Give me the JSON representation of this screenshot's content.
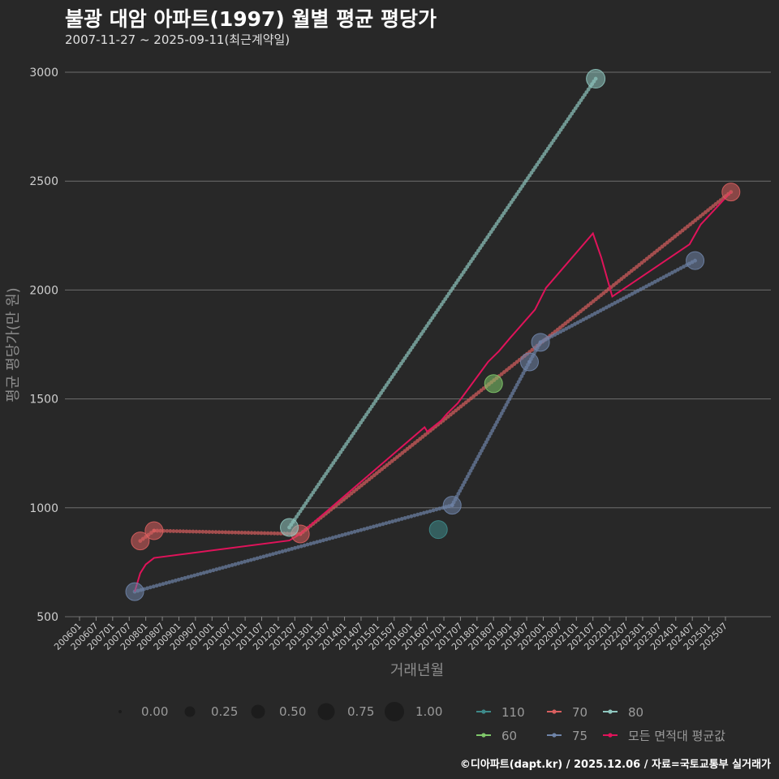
{
  "title": "불광 대암 아파트(1997) 월별 평균 평당가",
  "subtitle": "2007-11-27 ~ 2025-09-11(최근계약일)",
  "footer": "©디아파트(dapt.kr) / 2025.12.06 / 자료=국토교통부 실거래가",
  "chart_data": {
    "type": "line",
    "title": "불광 대암 아파트(1997) 월별 평균 평당가",
    "xlabel": "거래년월",
    "ylabel": "평균 평당가(만 원)",
    "ylim": [
      500,
      3000
    ],
    "yticks": [
      500,
      1000,
      1500,
      2000,
      2500,
      3000
    ],
    "xtick_labels": [
      "200601",
      "200607",
      "200701",
      "200707",
      "200801",
      "200807",
      "200901",
      "200907",
      "201001",
      "201007",
      "201101",
      "201107",
      "201201",
      "201207",
      "201301",
      "201307",
      "201401",
      "201407",
      "201501",
      "201507",
      "201601",
      "201607",
      "201701",
      "201707",
      "201801",
      "201807",
      "201901",
      "201907",
      "202001",
      "202007",
      "202101",
      "202107",
      "202201",
      "202207",
      "202301",
      "202307",
      "202401",
      "202407",
      "202501",
      "202507"
    ],
    "size_legend": [
      "0.00",
      "0.25",
      "0.50",
      "0.75",
      "1.00"
    ],
    "series": [
      {
        "name": "110",
        "color": "#3e8a8a",
        "points": [
          {
            "x": "2016-11",
            "y": 900,
            "size": 0.6
          }
        ]
      },
      {
        "name": "70",
        "color": "#d95f5f",
        "points": [
          {
            "x": "2007-11",
            "y": 848,
            "size": 0.6
          },
          {
            "x": "2008-04",
            "y": 895,
            "size": 0.6
          },
          {
            "x": "2012-09",
            "y": 880,
            "size": 0.6
          },
          {
            "x": "2025-09",
            "y": 2450,
            "size": 0.6
          }
        ]
      },
      {
        "name": "80",
        "color": "#8fc7bf",
        "points": [
          {
            "x": "2012-05",
            "y": 910,
            "size": 0.6
          },
          {
            "x": "2021-08",
            "y": 2970,
            "size": 0.7
          }
        ]
      },
      {
        "name": "60",
        "color": "#7fc86a",
        "points": [
          {
            "x": "2018-07",
            "y": 1570,
            "size": 0.6
          }
        ]
      },
      {
        "name": "75",
        "color": "#6f84a8",
        "points": [
          {
            "x": "2007-09",
            "y": 615,
            "size": 0.6
          },
          {
            "x": "2017-04",
            "y": 1012,
            "size": 0.6
          },
          {
            "x": "2019-08",
            "y": 1670,
            "size": 0.6
          },
          {
            "x": "2019-12",
            "y": 1760,
            "size": 0.6
          },
          {
            "x": "2024-08",
            "y": 2135,
            "size": 0.6
          }
        ]
      },
      {
        "name": "모든 면적대 평균값",
        "color": "#e0135a",
        "points": [
          {
            "x": "2007-09",
            "y": 615
          },
          {
            "x": "2007-11",
            "y": 700
          },
          {
            "x": "2008-01",
            "y": 740
          },
          {
            "x": "2008-04",
            "y": 770
          },
          {
            "x": "2012-05",
            "y": 850
          },
          {
            "x": "2012-09",
            "y": 880
          },
          {
            "x": "2016-06",
            "y": 1370
          },
          {
            "x": "2016-07",
            "y": 1350
          },
          {
            "x": "2016-12",
            "y": 1400
          },
          {
            "x": "2017-02",
            "y": 1430
          },
          {
            "x": "2017-06",
            "y": 1480
          },
          {
            "x": "2018-05",
            "y": 1670
          },
          {
            "x": "2018-09",
            "y": 1720
          },
          {
            "x": "2019-01",
            "y": 1780
          },
          {
            "x": "2019-10",
            "y": 1910
          },
          {
            "x": "2020-02",
            "y": 2010
          },
          {
            "x": "2021-07",
            "y": 2260
          },
          {
            "x": "2021-10",
            "y": 2150
          },
          {
            "x": "2022-02",
            "y": 1970
          },
          {
            "x": "2024-06",
            "y": 2210
          },
          {
            "x": "2024-10",
            "y": 2300
          },
          {
            "x": "2025-09",
            "y": 2450
          }
        ]
      }
    ]
  }
}
